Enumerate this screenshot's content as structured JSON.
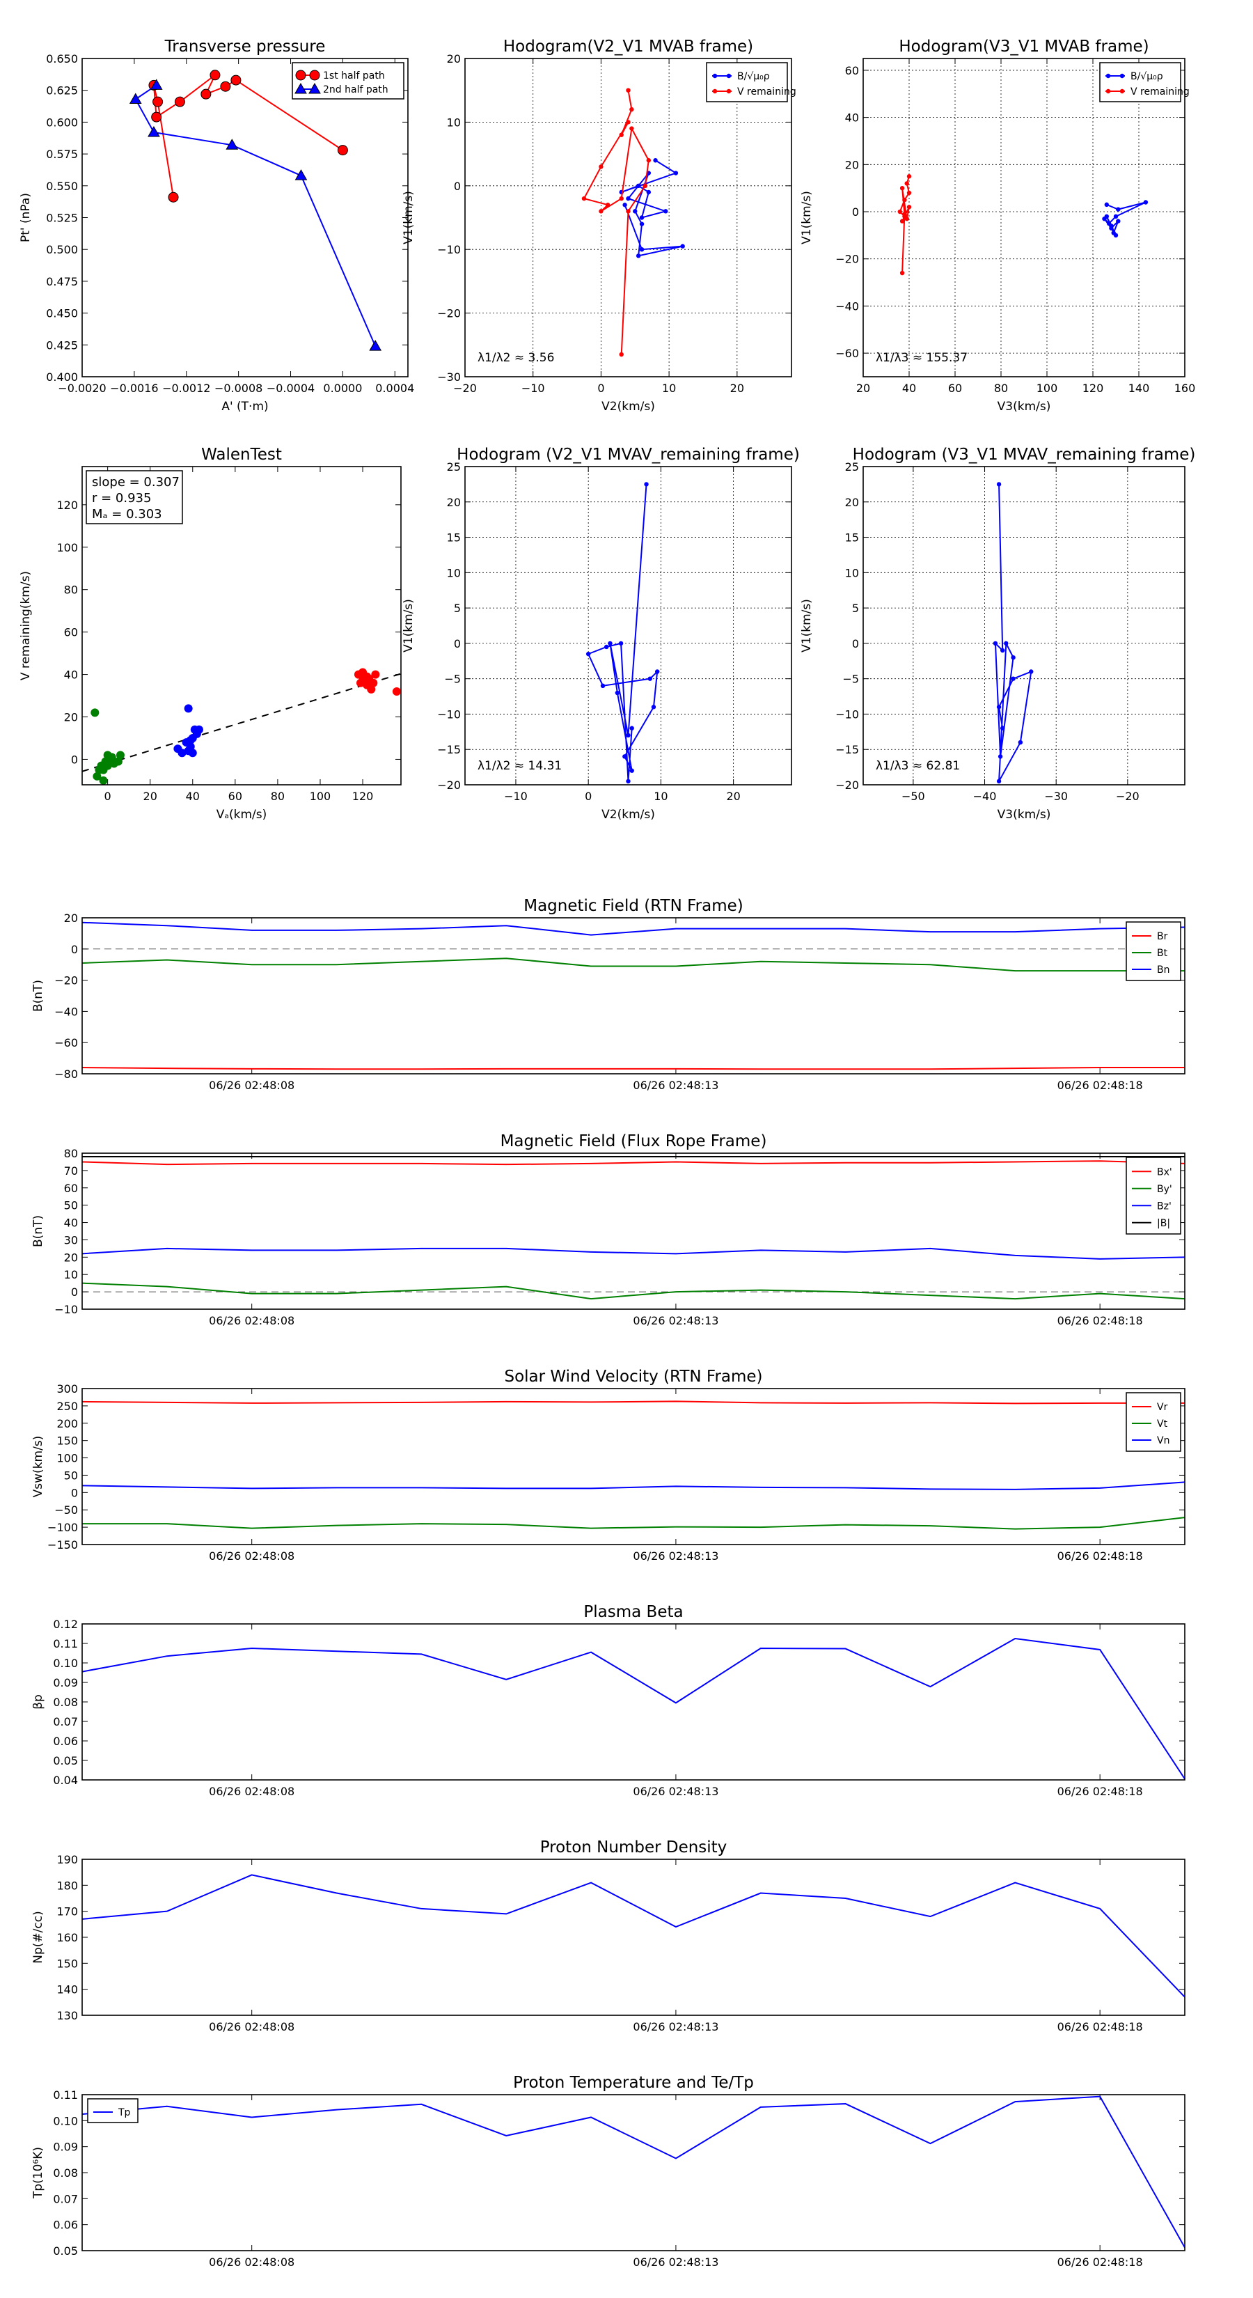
{
  "chart_data": [
    {
      "id": "p_transverse",
      "type": "line",
      "title": "Transverse pressure",
      "xlabel": "A' (T·m)",
      "ylabel": "Pt' (nPa)",
      "xlim": [
        -0.002,
        0.0005
      ],
      "ylim": [
        0.4,
        0.65
      ],
      "xticks": [
        -0.002,
        -0.0016,
        -0.0012,
        -0.0008,
        -0.0004,
        0.0,
        0.0004
      ],
      "xtick_labels": [
        "−0.0020",
        "−0.0016",
        "−0.0012",
        "−0.0008",
        "−0.0004",
        "0.0000",
        "0.0004"
      ],
      "yticks": [
        0.4,
        0.425,
        0.45,
        0.475,
        0.5,
        0.525,
        0.55,
        0.575,
        0.6,
        0.625,
        0.65
      ],
      "ytick_labels": [
        "0.400",
        "0.425",
        "0.450",
        "0.475",
        "0.500",
        "0.525",
        "0.550",
        "0.575",
        "0.600",
        "0.625",
        "0.650"
      ],
      "grid": false,
      "legend": "upper-right",
      "series": [
        {
          "name": "1st half path",
          "color": "#ff0000",
          "marker": "circle",
          "x": [
            0.0,
            -0.00082,
            -0.0009,
            -0.00105,
            -0.00098,
            -0.00125,
            -0.00143,
            -0.00145,
            -0.00142,
            -0.0013
          ],
          "y": [
            0.578,
            0.633,
            0.628,
            0.622,
            0.637,
            0.616,
            0.604,
            0.629,
            0.616,
            0.541
          ]
        },
        {
          "name": "2nd half path",
          "color": "#0000ff",
          "marker": "triangle",
          "x": [
            -0.00143,
            -0.00159,
            -0.00145,
            -0.00085,
            -0.00032,
            0.00025
          ],
          "y": [
            0.629,
            0.618,
            0.592,
            0.582,
            0.558,
            0.424
          ]
        }
      ]
    },
    {
      "id": "p_hodo_v2",
      "type": "line",
      "title": "Hodogram(V2_V1 MVAB frame)",
      "xlabel": "V2(km/s)",
      "ylabel": "V1(km/s)",
      "xlim": [
        -20,
        28
      ],
      "ylim": [
        -30,
        20
      ],
      "xticks": [
        -20,
        -10,
        0,
        10,
        20
      ],
      "yticks": [
        -30,
        -20,
        -10,
        0,
        10,
        20
      ],
      "grid": true,
      "legend": "upper-right",
      "annotation": "λ1/λ2 ≈ 3.56",
      "series": [
        {
          "name": "B/√μ₀ρ",
          "color": "#0000ff",
          "marker": "dot",
          "x": [
            8,
            11,
            3,
            5.5,
            7,
            6,
            9.5,
            4,
            7,
            5,
            6,
            5.5,
            12,
            6,
            3.5
          ],
          "y": [
            4,
            2,
            -1,
            0,
            -1,
            -5,
            -4,
            -2,
            2,
            -4,
            -6,
            -11,
            -9.5,
            -10,
            -3
          ]
        },
        {
          "name": "V_remaining",
          "color": "#ff0000",
          "marker": "dot",
          "x": [
            4,
            4.5,
            3,
            4,
            0,
            -2.5,
            1,
            0,
            3,
            4.5,
            7,
            6.5,
            4,
            3
          ],
          "y": [
            15,
            12,
            8,
            10,
            3,
            -2,
            -3,
            -4,
            -2,
            9,
            4,
            0,
            -4,
            -26.5
          ]
        }
      ]
    },
    {
      "id": "p_hodo_v3",
      "type": "line",
      "title": "Hodogram(V3_V1 MVAB frame)",
      "xlabel": "V3(km/s)",
      "ylabel": "V1(km/s)",
      "xlim": [
        20,
        160
      ],
      "ylim": [
        -70,
        65
      ],
      "xticks": [
        20,
        40,
        60,
        80,
        100,
        120,
        140,
        160
      ],
      "yticks": [
        -60,
        -40,
        -20,
        0,
        20,
        40,
        60
      ],
      "grid": true,
      "legend": "upper-right",
      "annotation": "λ1/λ3 ≈ 155.37",
      "series": [
        {
          "name": "B/√μ₀ρ",
          "color": "#0000ff",
          "marker": "dot",
          "x": [
            126,
            131,
            143,
            130,
            127,
            125,
            128,
            131,
            129,
            126,
            130,
            128
          ],
          "y": [
            3,
            1,
            4,
            -2,
            -5,
            -3,
            -7,
            -4,
            -9,
            -2,
            -10,
            -6
          ]
        },
        {
          "name": "V_remaining",
          "color": "#ff0000",
          "marker": "dot",
          "x": [
            40,
            39,
            40,
            38,
            36,
            38,
            37,
            40,
            39,
            37,
            38,
            37
          ],
          "y": [
            15,
            12,
            8,
            5,
            0,
            -2,
            -4,
            2,
            -3,
            10,
            -1,
            -26
          ]
        }
      ]
    },
    {
      "id": "p_walen",
      "type": "scatter",
      "title": "WalenTest",
      "xlabel": "V_A(km/s)",
      "ylabel": "V_remaining(km/s)",
      "xlim": [
        -12,
        138
      ],
      "ylim": [
        -12,
        138
      ],
      "xticks": [
        0,
        20,
        40,
        60,
        80,
        100,
        120
      ],
      "yticks": [
        0,
        20,
        40,
        60,
        80,
        100,
        120
      ],
      "grid": false,
      "stats": [
        "slope = 0.307",
        "r = 0.935",
        "M_A = 0.303"
      ],
      "fit_line": {
        "slope": 0.307,
        "intercept": -2.0,
        "color": "#000000",
        "style": "dashed"
      },
      "series": [
        {
          "name": "green",
          "color": "#008000",
          "x": [
            -6,
            -3,
            -5,
            -2,
            0,
            1,
            3,
            5,
            6,
            2,
            -1,
            -4,
            0,
            -2
          ],
          "y": [
            22,
            -3,
            -8,
            -5,
            2,
            0,
            -2,
            -1,
            2,
            1,
            -1,
            -5,
            -3,
            -10
          ]
        },
        {
          "name": "blue",
          "color": "#0000ff",
          "x": [
            33,
            35,
            38,
            39,
            40,
            41,
            42,
            37,
            40,
            43,
            38,
            39
          ],
          "y": [
            5,
            3,
            4,
            6,
            10,
            14,
            12,
            8,
            3,
            14,
            24,
            9
          ]
        },
        {
          "name": "red",
          "color": "#ff0000",
          "x": [
            118,
            120,
            122,
            123,
            125,
            126,
            120,
            124,
            122,
            136,
            121,
            119
          ],
          "y": [
            40,
            37,
            35,
            38,
            36,
            40,
            41,
            33,
            39,
            32,
            38,
            36
          ]
        }
      ]
    },
    {
      "id": "p_hodo_v2_rem",
      "type": "line",
      "title": "Hodogram (V2_V1 MVAV_remaining frame)",
      "xlabel": "V2(km/s)",
      "ylabel": "V1(km/s)",
      "xlim": [
        -17,
        28
      ],
      "ylim": [
        -20,
        25
      ],
      "xticks": [
        -10,
        0,
        10,
        20
      ],
      "yticks": [
        -20,
        -15,
        -10,
        -5,
        0,
        5,
        10,
        15,
        20,
        25
      ],
      "grid": true,
      "annotation": "λ1/λ2 ≈ 14.31",
      "series": [
        {
          "name": "V",
          "color": "#0000ff",
          "marker": "dot",
          "x": [
            8,
            5.5,
            3,
            4,
            6,
            5,
            9,
            9.5,
            8.5,
            2,
            0,
            2.5,
            4.5,
            5.5,
            6
          ],
          "y": [
            22.5,
            -13,
            0,
            -7,
            -18,
            -16,
            -9,
            -4,
            -5,
            -6,
            -1.5,
            -0.5,
            0,
            -19.5,
            -12
          ]
        }
      ]
    },
    {
      "id": "p_hodo_v3_rem",
      "type": "line",
      "title": "Hodogram (V3_V1 MVAV_remaining frame)",
      "xlabel": "V3(km/s)",
      "ylabel": "V1(km/s)",
      "xlim": [
        -57,
        -12
      ],
      "ylim": [
        -20,
        25
      ],
      "xticks": [
        -50,
        -40,
        -30,
        -20
      ],
      "yticks": [
        -20,
        -15,
        -10,
        -5,
        0,
        5,
        10,
        15,
        20,
        25
      ],
      "grid": true,
      "annotation": "λ1/λ3 ≈ 62.81",
      "series": [
        {
          "name": "V",
          "color": "#0000ff",
          "marker": "dot",
          "x": [
            -38,
            -37.5,
            -38.5,
            -37.8,
            -36,
            -37,
            -38,
            -35,
            -33.5,
            -36,
            -38,
            -37.5
          ],
          "y": [
            22.5,
            -1,
            0,
            -16,
            -2,
            0,
            -19.5,
            -14,
            -4,
            -5,
            -9,
            -12
          ]
        }
      ]
    },
    {
      "id": "p_mag_rtn",
      "type": "line",
      "title": "Magnetic Field (RTN Frame)",
      "ylabel": "B(nT)",
      "xlim": [
        0,
        13
      ],
      "ylim": [
        -80,
        20
      ],
      "yticks": [
        -80,
        -60,
        -40,
        -20,
        0,
        20
      ],
      "xticks": [
        2,
        7,
        12
      ],
      "xtick_labels": [
        "06/26 02:48:08",
        "06/26 02:48:13",
        "06/26 02:48:18"
      ],
      "zero_line": true,
      "legend": "upper-right",
      "series": [
        {
          "name": "Br",
          "color": "#ff0000",
          "values": [
            -76,
            -76.5,
            -76.8,
            -77,
            -77,
            -76.8,
            -76.8,
            -76.8,
            -77,
            -77,
            -77,
            -76.5,
            -76,
            -76
          ]
        },
        {
          "name": "Bt",
          "color": "#008000",
          "values": [
            -9,
            -7,
            -10,
            -10,
            -8,
            -6,
            -11,
            -11,
            -8,
            -9,
            -10,
            -14,
            -14,
            -14
          ]
        },
        {
          "name": "Bn",
          "color": "#0000ff",
          "values": [
            17,
            15,
            12,
            12,
            13,
            15,
            9,
            13,
            13,
            13,
            11,
            11,
            13,
            14
          ]
        }
      ]
    },
    {
      "id": "p_mag_flux",
      "type": "line",
      "title": "Magnetic Field (Flux Rope Frame)",
      "ylabel": "B(nT)",
      "xlim": [
        0,
        13
      ],
      "ylim": [
        -10,
        80
      ],
      "yticks": [
        -10,
        0,
        10,
        20,
        30,
        40,
        50,
        60,
        70,
        80
      ],
      "xticks": [
        2,
        7,
        12
      ],
      "xtick_labels": [
        "06/26 02:48:08",
        "06/26 02:48:13",
        "06/26 02:48:18"
      ],
      "zero_line": true,
      "legend": "upper-right",
      "series": [
        {
          "name": "Bx'",
          "color": "#ff0000",
          "values": [
            75,
            73.5,
            74,
            74,
            74,
            73.5,
            74,
            75,
            74,
            74.5,
            74.5,
            75,
            75.5,
            74
          ]
        },
        {
          "name": "By'",
          "color": "#008000",
          "values": [
            5,
            3,
            -1,
            -1,
            1,
            3,
            -4,
            0,
            1,
            0,
            -2,
            -4,
            -1,
            -4
          ]
        },
        {
          "name": "Bz'",
          "color": "#0000ff",
          "values": [
            22,
            25,
            24,
            24,
            25,
            25,
            23,
            22,
            24,
            23,
            25,
            21,
            19,
            20
          ]
        },
        {
          "name": "|B|",
          "color": "#000000",
          "values": [
            78,
            78,
            78,
            78,
            78,
            78,
            78,
            78,
            78,
            78,
            78,
            78,
            78,
            78
          ]
        }
      ]
    },
    {
      "id": "p_velocity",
      "type": "line",
      "title": "Solar Wind Velocity (RTN Frame)",
      "ylabel": "Vsw(km/s)",
      "xlim": [
        0,
        13
      ],
      "ylim": [
        -150,
        300
      ],
      "yticks": [
        -150,
        -100,
        -50,
        0,
        50,
        100,
        150,
        200,
        250,
        300
      ],
      "xticks": [
        2,
        7,
        12
      ],
      "xtick_labels": [
        "06/26 02:48:08",
        "06/26 02:48:13",
        "06/26 02:48:18"
      ],
      "legend": "upper-right",
      "series": [
        {
          "name": "Vr",
          "color": "#ff0000",
          "values": [
            262,
            260,
            258,
            259,
            260,
            262,
            261,
            263,
            259,
            258,
            259,
            257,
            258,
            258
          ]
        },
        {
          "name": "Vt",
          "color": "#008000",
          "values": [
            -90,
            -90,
            -103,
            -95,
            -90,
            -92,
            -103,
            -99,
            -100,
            -93,
            -96,
            -105,
            -100,
            -72
          ]
        },
        {
          "name": "Vn",
          "color": "#0000ff",
          "values": [
            20,
            16,
            12,
            14,
            14,
            12,
            12,
            18,
            15,
            14,
            10,
            9,
            13,
            30
          ]
        }
      ]
    },
    {
      "id": "p_beta",
      "type": "line",
      "title": "Plasma Beta",
      "ylabel": "βp",
      "xlim": [
        0,
        13
      ],
      "ylim": [
        0.04,
        0.12
      ],
      "yticks": [
        0.04,
        0.05,
        0.06,
        0.07,
        0.08,
        0.09,
        0.1,
        0.11,
        0.12
      ],
      "ytick_labels": [
        "0.04",
        "0.05",
        "0.06",
        "0.07",
        "0.08",
        "0.09",
        "0.10",
        "0.11",
        "0.12"
      ],
      "xticks": [
        2,
        7,
        12
      ],
      "xtick_labels": [
        "06/26 02:48:08",
        "06/26 02:48:13",
        "06/26 02:48:18"
      ],
      "series": [
        {
          "name": "beta",
          "color": "#0000ff",
          "x": [
            0,
            1,
            2,
            4,
            5,
            6,
            7,
            8,
            9,
            10,
            11,
            12,
            13
          ],
          "values": [
            0.0955,
            0.1035,
            0.1075,
            0.1045,
            0.0915,
            0.1055,
            0.0795,
            0.1075,
            0.1073,
            0.0878,
            0.1125,
            0.1068,
            0.0405
          ]
        }
      ]
    },
    {
      "id": "p_density",
      "type": "line",
      "title": "Proton Number Density",
      "ylabel": "Np(#/cc)",
      "xlim": [
        0,
        13
      ],
      "ylim": [
        130,
        190
      ],
      "yticks": [
        130,
        140,
        150,
        160,
        170,
        180,
        190
      ],
      "xticks": [
        2,
        7,
        12
      ],
      "xtick_labels": [
        "06/26 02:48:08",
        "06/26 02:48:13",
        "06/26 02:48:18"
      ],
      "series": [
        {
          "name": "Np",
          "color": "#0000ff",
          "x": [
            0,
            1,
            2,
            3,
            4,
            5,
            6,
            7,
            8,
            9,
            10,
            11,
            12,
            13
          ],
          "values": [
            167,
            170,
            184,
            177,
            171,
            169,
            181,
            164,
            177,
            175,
            168,
            181,
            171,
            137
          ]
        }
      ]
    },
    {
      "id": "p_temp",
      "type": "line",
      "title": "Proton Temperature and Te/Tp",
      "ylabel": "Tp(10⁶K)",
      "xlim": [
        0,
        13
      ],
      "ylim": [
        0.05,
        0.11
      ],
      "yticks": [
        0.05,
        0.06,
        0.07,
        0.08,
        0.09,
        0.1,
        0.11
      ],
      "ytick_labels": [
        "0.05",
        "0.06",
        "0.07",
        "0.08",
        "0.09",
        "0.10",
        "0.11"
      ],
      "xticks": [
        2,
        7,
        12
      ],
      "xtick_labels": [
        "06/26 02:48:08",
        "06/26 02:48:13",
        "06/26 02:48:18"
      ],
      "legend": "upper-left",
      "series": [
        {
          "name": "Tp",
          "color": "#0000ff",
          "x": [
            0,
            1,
            2,
            3,
            4,
            5,
            6,
            7,
            8,
            9,
            10,
            11,
            12,
            13
          ],
          "values": [
            0.1025,
            0.1055,
            0.1013,
            0.1042,
            0.1063,
            0.0942,
            0.1013,
            0.0855,
            0.1052,
            0.1065,
            0.0912,
            0.1073,
            0.1093,
            0.0512
          ]
        }
      ]
    }
  ]
}
